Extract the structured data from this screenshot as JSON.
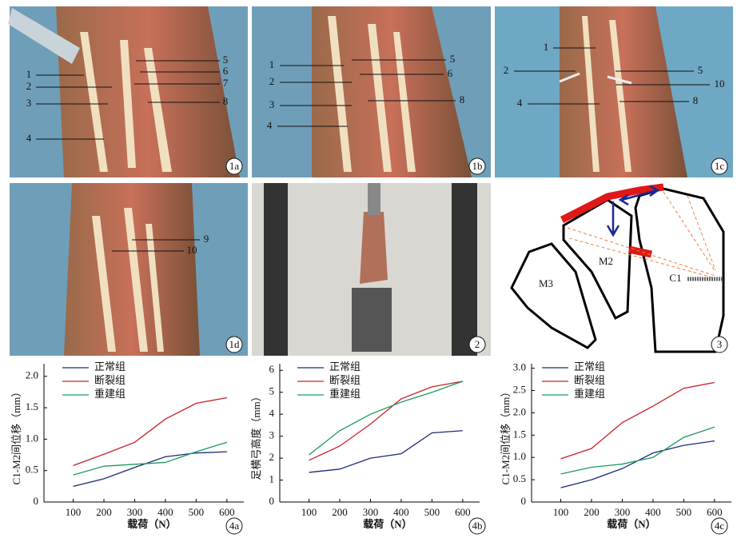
{
  "panels": [
    {
      "tag": "1a",
      "labels": [
        "1",
        "2",
        "3",
        "4",
        "5",
        "6",
        "7",
        "8"
      ]
    },
    {
      "tag": "1b",
      "labels": [
        "1",
        "2",
        "3",
        "4",
        "5",
        "6",
        "8"
      ]
    },
    {
      "tag": "1c",
      "labels": [
        "1",
        "2",
        "4",
        "5",
        "10",
        "8"
      ]
    },
    {
      "tag": "1d",
      "labels": [
        "9",
        "10"
      ]
    },
    {
      "tag": "2"
    },
    {
      "tag": "3",
      "labels": [
        "M3",
        "M2",
        "C1"
      ]
    }
  ],
  "chart_data": [
    {
      "type": "line",
      "tag": "4a",
      "ylabel": "C1-M2间位移（mm）",
      "xlabel": "载荷（N）",
      "x": [
        100,
        200,
        300,
        400,
        500,
        600
      ],
      "xlim": [
        5,
        655
      ],
      "xticks": [
        100,
        200,
        300,
        400,
        500,
        600
      ],
      "ylim": [
        0,
        2.2
      ],
      "yticks": [
        0,
        0.5,
        {
          "value": 1,
          "label": "1.0"
        },
        1.5,
        {
          "value": 2,
          "label": "2.0"
        }
      ],
      "series": [
        {
          "name": "正常组",
          "color": "#1f2a7a",
          "values": [
            0.25,
            0.37,
            0.55,
            0.72,
            0.78,
            0.8
          ]
        },
        {
          "name": "断裂组",
          "color": "#c8202a",
          "values": [
            0.58,
            0.76,
            0.95,
            1.32,
            1.57,
            1.66
          ]
        },
        {
          "name": "重建组",
          "color": "#1a9a5a",
          "values": [
            0.43,
            0.57,
            0.6,
            0.63,
            0.8,
            0.95
          ]
        }
      ]
    },
    {
      "type": "line",
      "tag": "4b",
      "ylabel": "足横弓高度（mm）",
      "xlabel": "载荷（N）",
      "x": [
        100,
        200,
        300,
        400,
        500,
        600
      ],
      "xlim": [
        5,
        655
      ],
      "xticks": [
        100,
        200,
        300,
        400,
        500,
        600
      ],
      "ylim": [
        0,
        6.3
      ],
      "yticks": [
        0,
        1,
        2,
        3,
        4,
        5,
        6
      ],
      "series": [
        {
          "name": "正常组",
          "color": "#1f2a7a",
          "values": [
            1.35,
            1.5,
            2.0,
            2.2,
            3.15,
            3.25
          ]
        },
        {
          "name": "断裂组",
          "color": "#c8202a",
          "values": [
            1.9,
            2.55,
            3.55,
            4.7,
            5.25,
            5.5
          ]
        },
        {
          "name": "重建组",
          "color": "#1a9a5a",
          "values": [
            2.15,
            3.25,
            4.0,
            4.55,
            5.0,
            5.5
          ]
        }
      ]
    },
    {
      "type": "line",
      "tag": "4c",
      "ylabel": "C1-M2间位移（mm）",
      "xlabel": "载荷（N）",
      "x": [
        100,
        200,
        300,
        400,
        500,
        600
      ],
      "xlim": [
        5,
        655
      ],
      "xticks": [
        100,
        200,
        300,
        400,
        500,
        600
      ],
      "ylim": [
        0,
        3.1
      ],
      "yticks": [
        0,
        0.5,
        {
          "value": 1,
          "label": "1.0"
        },
        1.5,
        {
          "value": 2,
          "label": "2.0"
        },
        2.5,
        {
          "value": 3,
          "label": "3.0"
        }
      ],
      "series": [
        {
          "name": "正常组",
          "color": "#1f2a7a",
          "values": [
            0.32,
            0.5,
            0.75,
            1.1,
            1.27,
            1.37
          ]
        },
        {
          "name": "断裂组",
          "color": "#c8202a",
          "values": [
            0.97,
            1.2,
            1.78,
            2.15,
            2.55,
            2.68
          ]
        },
        {
          "name": "重建组",
          "color": "#1a9a5a",
          "values": [
            0.63,
            0.78,
            0.85,
            1.0,
            1.45,
            1.68
          ]
        }
      ]
    }
  ]
}
